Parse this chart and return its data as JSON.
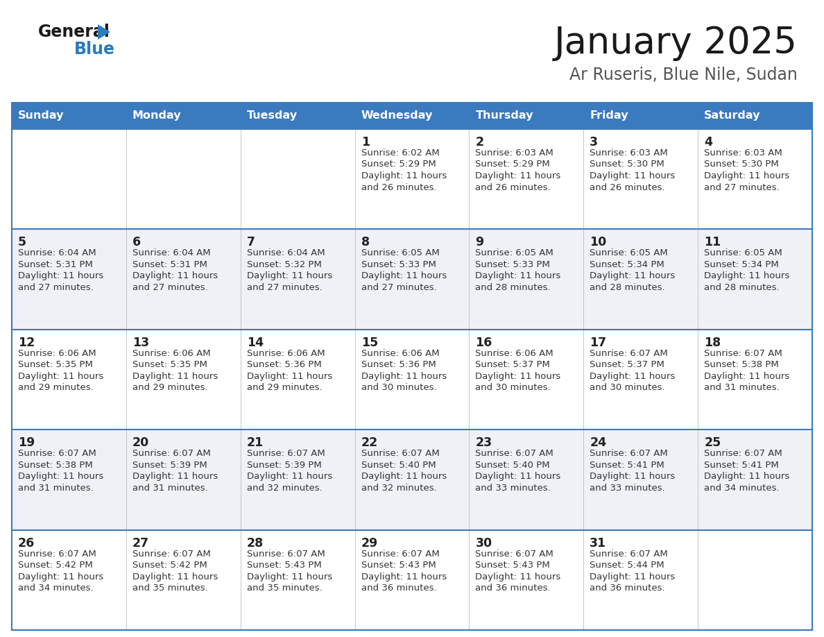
{
  "title": "January 2025",
  "subtitle": "Ar Ruseris, Blue Nile, Sudan",
  "days_of_week": [
    "Sunday",
    "Monday",
    "Tuesday",
    "Wednesday",
    "Thursday",
    "Friday",
    "Saturday"
  ],
  "header_bg": "#3a7bbf",
  "header_text": "#ffffff",
  "row_bg_odd": "#ffffff",
  "row_bg_even": "#eef2f7",
  "cell_border_color": "#3a7bbf",
  "day_num_color": "#222222",
  "info_color": "#333333",
  "calendar_data": [
    [
      null,
      null,
      null,
      {
        "day": "1",
        "sunrise": "6:02 AM",
        "sunset": "5:29 PM",
        "dl1": "Daylight: 11 hours",
        "dl2": "and 26 minutes."
      },
      {
        "day": "2",
        "sunrise": "6:03 AM",
        "sunset": "5:29 PM",
        "dl1": "Daylight: 11 hours",
        "dl2": "and 26 minutes."
      },
      {
        "day": "3",
        "sunrise": "6:03 AM",
        "sunset": "5:30 PM",
        "dl1": "Daylight: 11 hours",
        "dl2": "and 26 minutes."
      },
      {
        "day": "4",
        "sunrise": "6:03 AM",
        "sunset": "5:30 PM",
        "dl1": "Daylight: 11 hours",
        "dl2": "and 27 minutes."
      }
    ],
    [
      {
        "day": "5",
        "sunrise": "6:04 AM",
        "sunset": "5:31 PM",
        "dl1": "Daylight: 11 hours",
        "dl2": "and 27 minutes."
      },
      {
        "day": "6",
        "sunrise": "6:04 AM",
        "sunset": "5:31 PM",
        "dl1": "Daylight: 11 hours",
        "dl2": "and 27 minutes."
      },
      {
        "day": "7",
        "sunrise": "6:04 AM",
        "sunset": "5:32 PM",
        "dl1": "Daylight: 11 hours",
        "dl2": "and 27 minutes."
      },
      {
        "day": "8",
        "sunrise": "6:05 AM",
        "sunset": "5:33 PM",
        "dl1": "Daylight: 11 hours",
        "dl2": "and 27 minutes."
      },
      {
        "day": "9",
        "sunrise": "6:05 AM",
        "sunset": "5:33 PM",
        "dl1": "Daylight: 11 hours",
        "dl2": "and 28 minutes."
      },
      {
        "day": "10",
        "sunrise": "6:05 AM",
        "sunset": "5:34 PM",
        "dl1": "Daylight: 11 hours",
        "dl2": "and 28 minutes."
      },
      {
        "day": "11",
        "sunrise": "6:05 AM",
        "sunset": "5:34 PM",
        "dl1": "Daylight: 11 hours",
        "dl2": "and 28 minutes."
      }
    ],
    [
      {
        "day": "12",
        "sunrise": "6:06 AM",
        "sunset": "5:35 PM",
        "dl1": "Daylight: 11 hours",
        "dl2": "and 29 minutes."
      },
      {
        "day": "13",
        "sunrise": "6:06 AM",
        "sunset": "5:35 PM",
        "dl1": "Daylight: 11 hours",
        "dl2": "and 29 minutes."
      },
      {
        "day": "14",
        "sunrise": "6:06 AM",
        "sunset": "5:36 PM",
        "dl1": "Daylight: 11 hours",
        "dl2": "and 29 minutes."
      },
      {
        "day": "15",
        "sunrise": "6:06 AM",
        "sunset": "5:36 PM",
        "dl1": "Daylight: 11 hours",
        "dl2": "and 30 minutes."
      },
      {
        "day": "16",
        "sunrise": "6:06 AM",
        "sunset": "5:37 PM",
        "dl1": "Daylight: 11 hours",
        "dl2": "and 30 minutes."
      },
      {
        "day": "17",
        "sunrise": "6:07 AM",
        "sunset": "5:37 PM",
        "dl1": "Daylight: 11 hours",
        "dl2": "and 30 minutes."
      },
      {
        "day": "18",
        "sunrise": "6:07 AM",
        "sunset": "5:38 PM",
        "dl1": "Daylight: 11 hours",
        "dl2": "and 31 minutes."
      }
    ],
    [
      {
        "day": "19",
        "sunrise": "6:07 AM",
        "sunset": "5:38 PM",
        "dl1": "Daylight: 11 hours",
        "dl2": "and 31 minutes."
      },
      {
        "day": "20",
        "sunrise": "6:07 AM",
        "sunset": "5:39 PM",
        "dl1": "Daylight: 11 hours",
        "dl2": "and 31 minutes."
      },
      {
        "day": "21",
        "sunrise": "6:07 AM",
        "sunset": "5:39 PM",
        "dl1": "Daylight: 11 hours",
        "dl2": "and 32 minutes."
      },
      {
        "day": "22",
        "sunrise": "6:07 AM",
        "sunset": "5:40 PM",
        "dl1": "Daylight: 11 hours",
        "dl2": "and 32 minutes."
      },
      {
        "day": "23",
        "sunrise": "6:07 AM",
        "sunset": "5:40 PM",
        "dl1": "Daylight: 11 hours",
        "dl2": "and 33 minutes."
      },
      {
        "day": "24",
        "sunrise": "6:07 AM",
        "sunset": "5:41 PM",
        "dl1": "Daylight: 11 hours",
        "dl2": "and 33 minutes."
      },
      {
        "day": "25",
        "sunrise": "6:07 AM",
        "sunset": "5:41 PM",
        "dl1": "Daylight: 11 hours",
        "dl2": "and 34 minutes."
      }
    ],
    [
      {
        "day": "26",
        "sunrise": "6:07 AM",
        "sunset": "5:42 PM",
        "dl1": "Daylight: 11 hours",
        "dl2": "and 34 minutes."
      },
      {
        "day": "27",
        "sunrise": "6:07 AM",
        "sunset": "5:42 PM",
        "dl1": "Daylight: 11 hours",
        "dl2": "and 35 minutes."
      },
      {
        "day": "28",
        "sunrise": "6:07 AM",
        "sunset": "5:43 PM",
        "dl1": "Daylight: 11 hours",
        "dl2": "and 35 minutes."
      },
      {
        "day": "29",
        "sunrise": "6:07 AM",
        "sunset": "5:43 PM",
        "dl1": "Daylight: 11 hours",
        "dl2": "and 36 minutes."
      },
      {
        "day": "30",
        "sunrise": "6:07 AM",
        "sunset": "5:43 PM",
        "dl1": "Daylight: 11 hours",
        "dl2": "and 36 minutes."
      },
      {
        "day": "31",
        "sunrise": "6:07 AM",
        "sunset": "5:44 PM",
        "dl1": "Daylight: 11 hours",
        "dl2": "and 36 minutes."
      },
      null
    ]
  ],
  "fig_width": 11.88,
  "fig_height": 9.18,
  "dpi": 100
}
